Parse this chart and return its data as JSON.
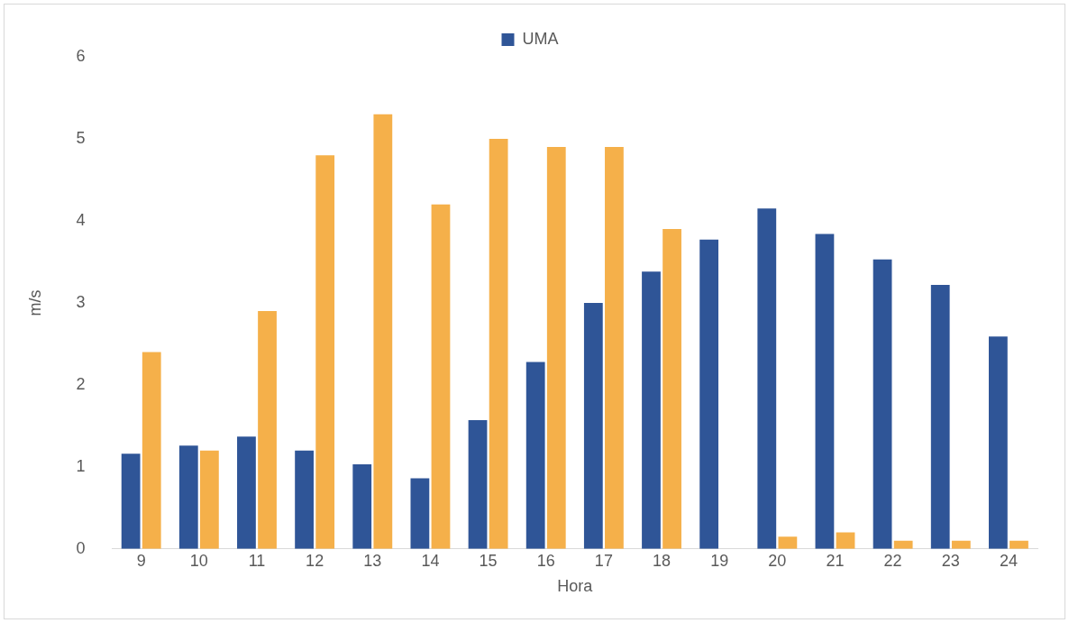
{
  "chart_data": {
    "type": "bar",
    "xlabel": "Hora",
    "ylabel": "m/s",
    "categories": [
      "9",
      "10",
      "11",
      "12",
      "13",
      "14",
      "15",
      "16",
      "17",
      "18",
      "19",
      "20",
      "21",
      "22",
      "23",
      "24"
    ],
    "series": [
      {
        "name": "UMA",
        "color": "#2f5597",
        "values": [
          1.16,
          1.26,
          1.37,
          1.2,
          1.03,
          0.86,
          1.57,
          2.28,
          3.0,
          3.38,
          3.77,
          4.15,
          3.84,
          3.53,
          3.22,
          2.59
        ]
      },
      {
        "color": "#f5b04a",
        "values": [
          2.4,
          1.2,
          2.9,
          4.8,
          5.3,
          4.2,
          5.0,
          4.9,
          4.9,
          3.9,
          null,
          0.15,
          0.2,
          0.1,
          0.1,
          0.1
        ]
      }
    ],
    "ylim": [
      0,
      6
    ],
    "yticks": [
      0,
      1,
      2,
      3,
      4,
      5,
      6
    ],
    "grid": false,
    "legend": "top"
  }
}
